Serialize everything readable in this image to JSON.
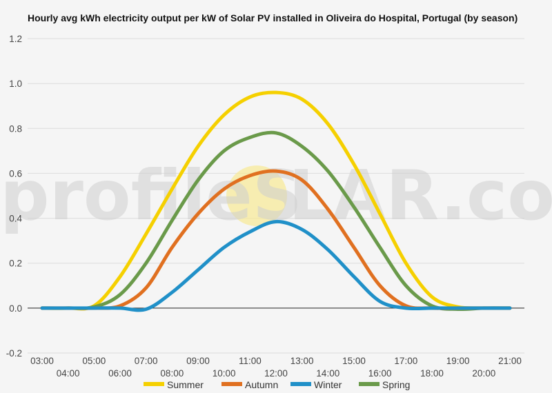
{
  "chart_data": {
    "type": "line",
    "title": "Hourly avg kWh electricity output per kW of Solar PV installed in Oliveira do Hospital, Portugal (by season)",
    "xlabel": "",
    "ylabel": "",
    "ylim": [
      -0.2,
      1.2
    ],
    "yticks": [
      "-0.2",
      "0.0",
      "0.2",
      "0.4",
      "0.6",
      "0.8",
      "1.0",
      "1.2"
    ],
    "x": [
      "03:00",
      "04:00",
      "05:00",
      "06:00",
      "07:00",
      "08:00",
      "09:00",
      "10:00",
      "11:00",
      "12:00",
      "13:00",
      "14:00",
      "15:00",
      "16:00",
      "17:00",
      "18:00",
      "19:00",
      "20:00",
      "21:00"
    ],
    "grid": true,
    "legend_position": "bottom",
    "series": [
      {
        "name": "Summer",
        "color": "#f5d000",
        "values": [
          0,
          0,
          0.01,
          0.14,
          0.33,
          0.53,
          0.72,
          0.86,
          0.94,
          0.96,
          0.93,
          0.82,
          0.64,
          0.42,
          0.2,
          0.05,
          0.005,
          0,
          0
        ]
      },
      {
        "name": "Autumn",
        "color": "#e07020",
        "values": [
          0,
          0,
          0,
          0.01,
          0.09,
          0.27,
          0.42,
          0.53,
          0.59,
          0.61,
          0.57,
          0.44,
          0.27,
          0.1,
          0.01,
          0,
          0,
          0,
          0
        ]
      },
      {
        "name": "Winter",
        "color": "#2090c8",
        "values": [
          0,
          0,
          0,
          0,
          -0.005,
          0.07,
          0.17,
          0.27,
          0.34,
          0.385,
          0.35,
          0.26,
          0.14,
          0.03,
          0,
          0,
          0,
          0,
          0
        ]
      },
      {
        "name": "Spring",
        "color": "#6a9a4a",
        "values": [
          0,
          0,
          0.005,
          0.06,
          0.2,
          0.39,
          0.57,
          0.7,
          0.76,
          0.78,
          0.72,
          0.61,
          0.45,
          0.27,
          0.1,
          0.01,
          -0.005,
          0,
          0
        ]
      }
    ]
  },
  "watermark": {
    "text_left": "profileS",
    "text_right": "LAR.com",
    "sun_color": "#f7e99a"
  },
  "colors": {
    "background": "#f5f5f5",
    "grid": "#dcdcdc",
    "zero_line": "#222222"
  }
}
